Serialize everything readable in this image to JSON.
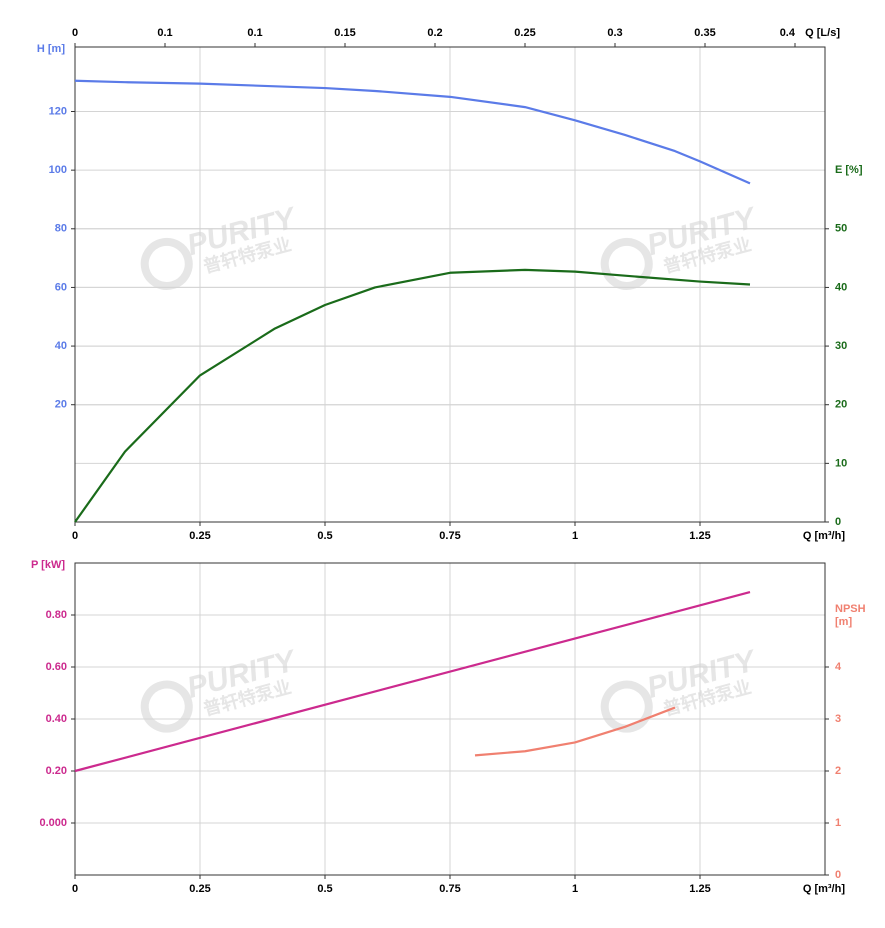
{
  "chart_data": [
    {
      "type": "line",
      "xlabel": "Q [m³/h]",
      "x2label": "Q [L/s]",
      "ylabel": "H [m]",
      "y2label": "E [%]",
      "xlim": [
        0,
        1.5
      ],
      "xticks": [
        0,
        0.25,
        0.5,
        0.75,
        1,
        1.25
      ],
      "x2lim": [
        0,
        0.41667
      ],
      "x2ticks": [
        0,
        {
          "value": 0.05,
          "label": "0.1"
        },
        0.1,
        0.15,
        0.2,
        0.25,
        0.3,
        0.35,
        0.4
      ],
      "ylim": [
        -20,
        142
      ],
      "yticks": [
        20,
        40,
        60,
        80,
        100,
        120
      ],
      "y2lim": [
        0,
        81
      ],
      "y2ticks": [
        0,
        10,
        20,
        30,
        40,
        50
      ],
      "grid": true,
      "series": [
        {
          "color": "#5b7be8",
          "axis": "y",
          "x": [
            0,
            0.1,
            0.25,
            0.5,
            0.6,
            0.75,
            0.9,
            1.0,
            1.1,
            1.2,
            1.25,
            1.35
          ],
          "values": [
            130.5,
            130,
            129.5,
            128,
            127,
            125,
            121.5,
            117,
            112,
            106.5,
            103,
            95.5
          ]
        },
        {
          "color": "#1a6b1a",
          "axis": "y2",
          "x": [
            0,
            0.1,
            0.25,
            0.4,
            0.5,
            0.6,
            0.75,
            0.9,
            1.0,
            1.1,
            1.25,
            1.35
          ],
          "values": [
            0,
            12,
            25,
            33,
            37,
            40,
            42.5,
            43,
            42.7,
            42,
            41,
            40.5
          ]
        }
      ]
    },
    {
      "type": "line",
      "xlabel": "Q [m³/h]",
      "ylabel": "P [kW]",
      "y2label": "NPSH [m]",
      "xlim": [
        0,
        1.5
      ],
      "xticks": [
        0,
        0.25,
        0.5,
        0.75,
        1,
        1.25
      ],
      "ylim": [
        -0.2,
        1.0
      ],
      "yticks": [
        {
          "value": 0,
          "label": "0.000"
        },
        {
          "value": 0.2,
          "label": "0.20"
        },
        {
          "value": 0.4,
          "label": "0.40"
        },
        {
          "value": 0.6,
          "label": "0.60"
        },
        {
          "value": 0.8,
          "label": "0.80"
        }
      ],
      "y2lim": [
        0,
        6
      ],
      "y2ticks": [
        0,
        1,
        2,
        3,
        4
      ],
      "grid": true,
      "series": [
        {
          "color": "#cc2a8e",
          "axis": "y",
          "x": [
            0,
            1.35
          ],
          "values": [
            0.2,
            0.888
          ]
        },
        {
          "color": "#f08070",
          "axis": "y2",
          "x": [
            0.8,
            0.9,
            1.0,
            1.1,
            1.2
          ],
          "values": [
            2.3,
            2.38,
            2.55,
            2.85,
            3.22
          ]
        }
      ]
    }
  ],
  "watermark": {
    "text": "PURITY",
    "subtext": "普轩特泵业"
  }
}
